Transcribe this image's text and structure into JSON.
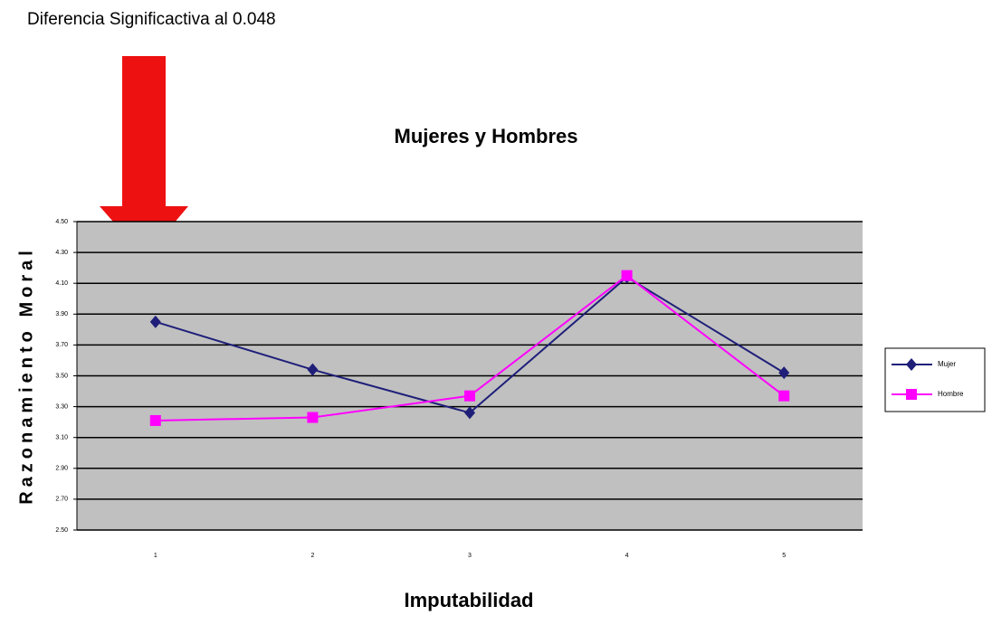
{
  "chart_data": {
    "type": "line",
    "annotation": "Diferencia Significactiva al 0.048",
    "title": "Mujeres y Hombres",
    "x_label": "Imputabilidad",
    "y_label": "Razonamiento Moral",
    "categories": [
      "1",
      "2",
      "3",
      "4",
      "5"
    ],
    "series": [
      {
        "name": "Mujer",
        "color": "#1f1f7a",
        "marker": "diamond",
        "values": [
          3.85,
          3.54,
          3.26,
          4.14,
          3.52
        ]
      },
      {
        "name": "Hombre",
        "color": "#ff00ff",
        "marker": "square",
        "values": [
          3.21,
          3.23,
          3.37,
          4.15,
          3.37
        ]
      }
    ],
    "ylim": [
      2.5,
      4.5
    ],
    "yticks": [
      {
        "value": 2.5,
        "label": "2.50"
      },
      {
        "value": 2.7,
        "label": "2.70"
      },
      {
        "value": 2.9,
        "label": "2.90"
      },
      {
        "value": 3.1,
        "label": "3.10"
      },
      {
        "value": 3.3,
        "label": "3.30"
      },
      {
        "value": 3.5,
        "label": "3.50"
      },
      {
        "value": 3.7,
        "label": "3.70"
      },
      {
        "value": 3.9,
        "label": "3.90"
      },
      {
        "value": 4.1,
        "label": "4.10"
      },
      {
        "value": 4.3,
        "label": "4.30"
      },
      {
        "value": 4.5,
        "label": "4.50"
      }
    ],
    "grid": true,
    "legend": "right"
  }
}
